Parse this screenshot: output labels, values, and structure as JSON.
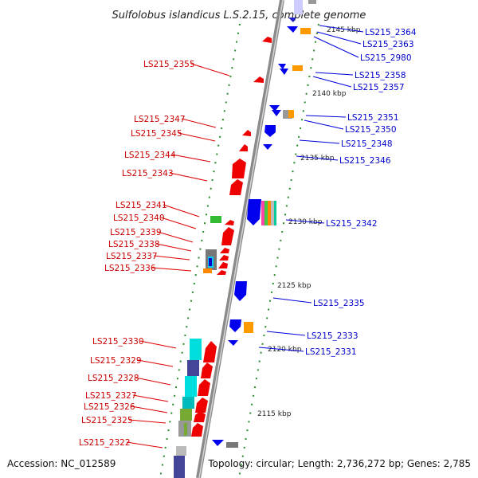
{
  "title": "Sulfolobus islandicus L.S.2.15, complete genome",
  "footer": {
    "accession": "Accession: NC_012589",
    "summary": "Topology: circular; Length: 2,736,272 bp; Genes: 2,785"
  },
  "colors": {
    "reverse_strand_label": "#cc0000",
    "forward_strand_label": "#0000cc",
    "backbone": "#909090",
    "ruler_tick": "#228822"
  },
  "scale_labels": [
    "2145 kbp",
    "2140 kbp",
    "2135 kbp",
    "2130 kbp",
    "2125 kbp",
    "2120 kbp",
    "2115 kbp"
  ],
  "left_labels": [
    "LS215_2355",
    "LS215_2347",
    "LS215_2345",
    "LS215_2344",
    "LS215_2343",
    "LS215_2341",
    "LS215_2340",
    "LS215_2339",
    "LS215_2338",
    "LS215_2337",
    "LS215_2336",
    "LS215_2330",
    "LS215_2329",
    "LS215_2328",
    "LS215_2327",
    "LS215_2326",
    "LS215_2325",
    "LS215_2322"
  ],
  "right_labels": [
    "LS215_2364",
    "LS215_2363",
    "LS215_2980",
    "LS215_2358",
    "LS215_2357",
    "LS215_2351",
    "LS215_2350",
    "LS215_2348",
    "LS215_2346",
    "LS215_2342",
    "LS215_2335",
    "LS215_2333",
    "LS215_2331"
  ]
}
